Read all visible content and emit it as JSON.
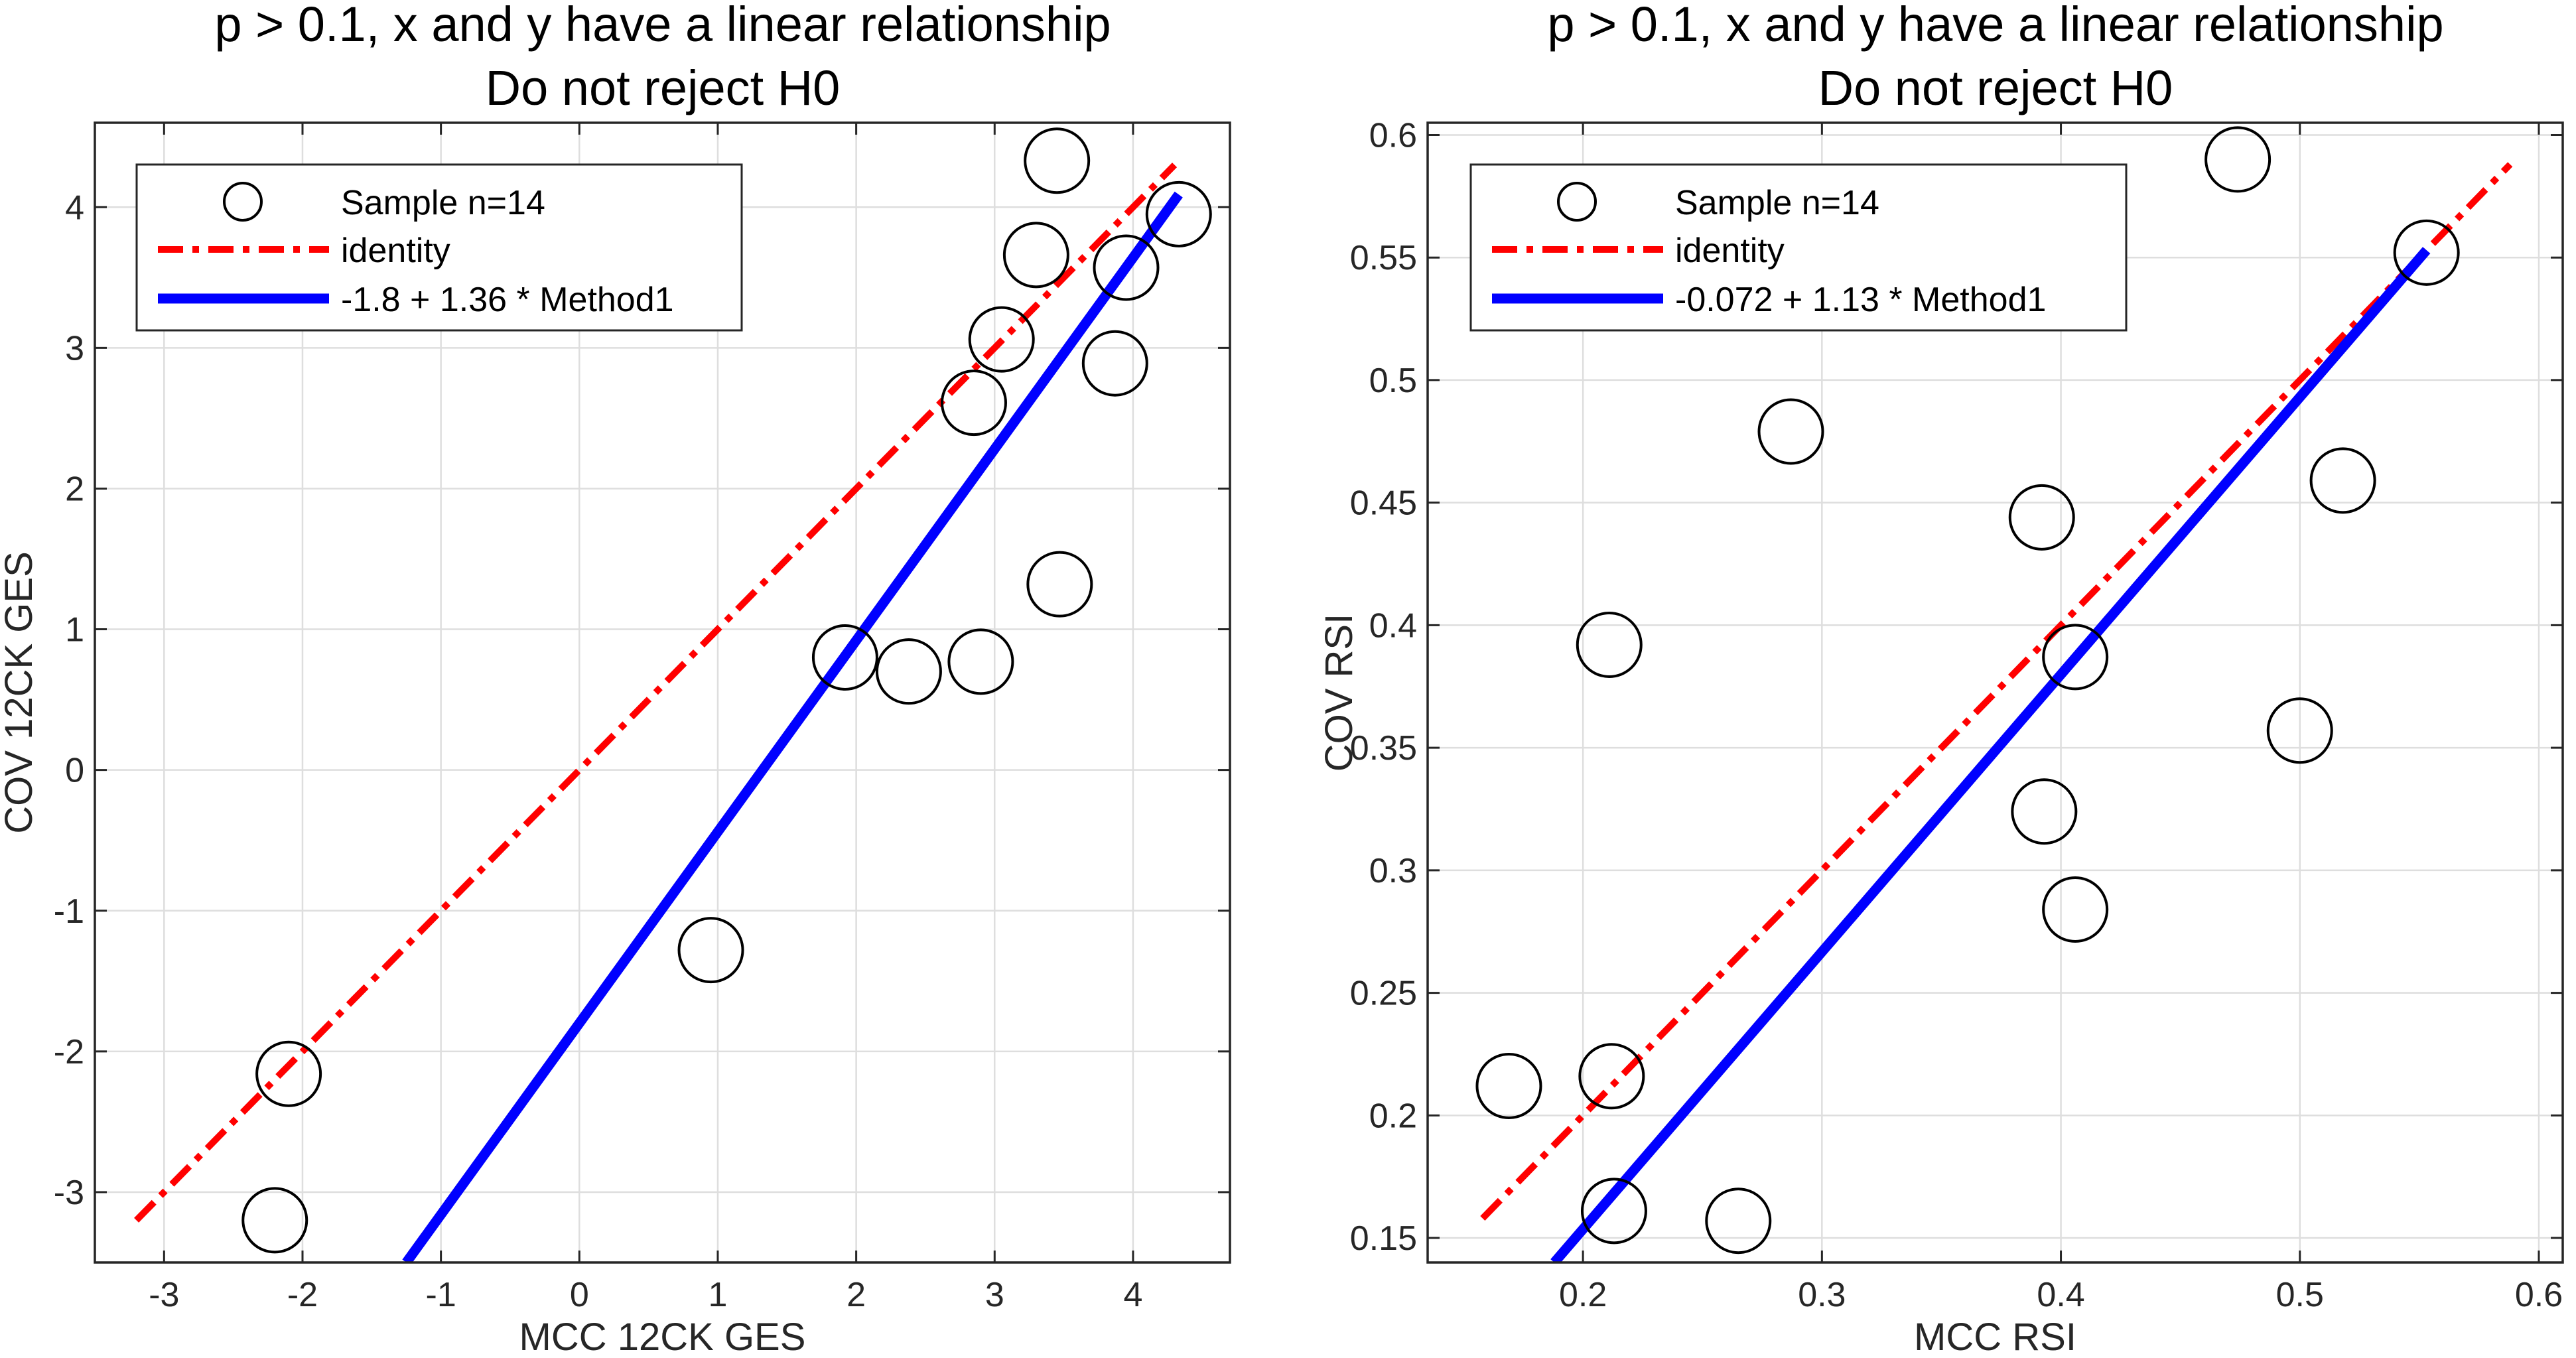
{
  "chart_data": [
    {
      "type": "scatter",
      "title": [
        "p > 0.1, x and y have a linear relationship",
        "Do not reject H0"
      ],
      "xlabel": "MCC 12CK GES",
      "ylabel": "COV 12CK GES",
      "xlim": [
        -3.5,
        4.7
      ],
      "ylim": [
        -3.5,
        4.6
      ],
      "xticks": [
        -3,
        -2,
        -1,
        0,
        1,
        2,
        3,
        4
      ],
      "yticks": [
        -3,
        -2,
        -1,
        0,
        1,
        2,
        3,
        4
      ],
      "xtick_labels": [
        "-3",
        "-2",
        "-1",
        "0",
        "1",
        "2",
        "3",
        "4"
      ],
      "ytick_labels": [
        "-3",
        "-2",
        "-1",
        "0",
        "1",
        "2",
        "3",
        "4"
      ],
      "grid": true,
      "legend_position": "top-left",
      "series": [
        {
          "name": "Sample n=14",
          "kind": "points",
          "color": "#000000",
          "points": [
            [
              3.45,
              4.33
            ],
            [
              4.33,
              3.95
            ],
            [
              3.3,
              3.66
            ],
            [
              3.95,
              3.57
            ],
            [
              3.05,
              3.06
            ],
            [
              3.87,
              2.89
            ],
            [
              2.85,
              2.61
            ],
            [
              3.47,
              1.32
            ],
            [
              1.92,
              0.8
            ],
            [
              2.38,
              0.7
            ],
            [
              2.9,
              0.77
            ],
            [
              0.95,
              -1.28
            ],
            [
              -2.1,
              -2.16
            ],
            [
              -2.2,
              -3.2
            ]
          ]
        },
        {
          "name": "identity",
          "kind": "line",
          "color": "#ff0000",
          "style": "dashdot",
          "points": [
            [
              -3.2,
              -3.2
            ],
            [
              4.3,
              4.3
            ]
          ]
        },
        {
          "name": "-1.8 + 1.36 * Method1",
          "kind": "line",
          "color": "#0000ff",
          "style": "solid",
          "points": [
            [
              -1.25,
              -3.5
            ],
            [
              4.33,
              4.09
            ]
          ]
        }
      ]
    },
    {
      "type": "scatter",
      "title": [
        "p > 0.1, x and y have a linear relationship",
        "Do not reject H0"
      ],
      "xlabel": "MCC RSI",
      "ylabel": "COV RSI",
      "xlim": [
        0.135,
        0.61
      ],
      "ylim": [
        0.14,
        0.605
      ],
      "xticks": [
        0.2,
        0.3,
        0.4,
        0.5,
        0.6
      ],
      "yticks": [
        0.15,
        0.2,
        0.25,
        0.3,
        0.35,
        0.4,
        0.45,
        0.5,
        0.55,
        0.6
      ],
      "xtick_labels": [
        "0.2",
        "0.3",
        "0.4",
        "0.5",
        "0.6"
      ],
      "ytick_labels": [
        "0.15",
        "0.2",
        "0.25",
        "0.3",
        "0.35",
        "0.4",
        "0.45",
        "0.5",
        "0.55",
        "0.6"
      ],
      "grid": true,
      "legend_position": "top-left",
      "series": [
        {
          "name": "Sample n=14",
          "kind": "points",
          "color": "#000000",
          "points": [
            [
              0.474,
              0.59
            ],
            [
              0.553,
              0.552
            ],
            [
              0.287,
              0.479
            ],
            [
              0.518,
              0.459
            ],
            [
              0.392,
              0.444
            ],
            [
              0.211,
              0.392
            ],
            [
              0.406,
              0.387
            ],
            [
              0.5,
              0.357
            ],
            [
              0.393,
              0.324
            ],
            [
              0.406,
              0.284
            ],
            [
              0.169,
              0.212
            ],
            [
              0.212,
              0.216
            ],
            [
              0.213,
              0.161
            ],
            [
              0.265,
              0.157
            ]
          ]
        },
        {
          "name": "identity",
          "kind": "line",
          "color": "#ff0000",
          "style": "dashdot",
          "points": [
            [
              0.158,
              0.158
            ],
            [
              0.588,
              0.588
            ]
          ]
        },
        {
          "name": "-0.072 + 1.13 * Method1",
          "kind": "line",
          "color": "#0000ff",
          "style": "solid",
          "points": [
            [
              0.188,
              0.14
            ],
            [
              0.553,
              0.553
            ]
          ]
        }
      ]
    }
  ]
}
